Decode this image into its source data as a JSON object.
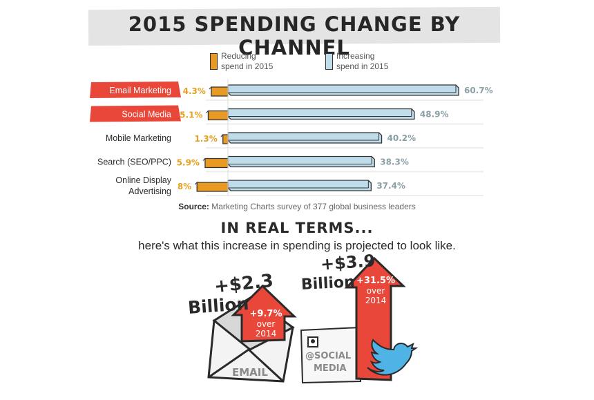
{
  "title": "2015 SPENDING CHANGE BY CHANNEL",
  "legend": {
    "reducing": "Reducing\nspend in 2015",
    "increasing": "Increasing\nspend in 2015"
  },
  "colors": {
    "reducing": "#e89a25",
    "increasing": "#bfdcea",
    "highlight": "#e8473a",
    "outline": "#333333",
    "value_text": "#8aa0a6",
    "reduce_text": "#e8a020"
  },
  "chart_data": {
    "type": "bar",
    "categories": [
      "Email Marketing",
      "Social Media",
      "Mobile Marketing",
      "Search (SEO/PPC)",
      "Online Display Advertising"
    ],
    "category_lines": [
      [
        "Email Marketing"
      ],
      [
        "Social Media"
      ],
      [
        "Mobile Marketing"
      ],
      [
        "Search (SEO/PPC)"
      ],
      [
        "Online Display",
        "Advertising"
      ]
    ],
    "highlighted": [
      true,
      true,
      false,
      false,
      false
    ],
    "series": [
      {
        "name": "Reducing spend in 2015",
        "values": [
          4.3,
          5.1,
          1.3,
          5.9,
          8
        ],
        "labels": [
          "4.3%",
          "5.1%",
          "1.3%",
          "5.9%",
          "8%"
        ]
      },
      {
        "name": "Increasing spend in 2015",
        "values": [
          60.7,
          48.9,
          40.2,
          38.3,
          37.4
        ],
        "labels": [
          "60.7%",
          "48.9%",
          "40.2%",
          "38.3%",
          "37.4%"
        ]
      }
    ],
    "title": "2015 SPENDING CHANGE BY CHANNEL",
    "xlabel": "",
    "ylabel": "",
    "legend_position": "top"
  },
  "source": {
    "prefix": "Source:",
    "text": " Marketing Charts survey of 377 global business leaders"
  },
  "real_terms": {
    "heading": "IN REAL TERMS...",
    "description": "here's what this increase in spending is projected to look like.",
    "email": {
      "amount": "+$2.3",
      "unit": "Billion",
      "pct": "+9.7%",
      "over": "over",
      "year": "2014",
      "label": "EMAIL"
    },
    "social": {
      "amount": "+$3.9",
      "unit": "Billion",
      "pct": "+31.5%",
      "over": "over",
      "year": "2014",
      "label1": "@SOCIAL",
      "label2": "MEDIA"
    }
  }
}
